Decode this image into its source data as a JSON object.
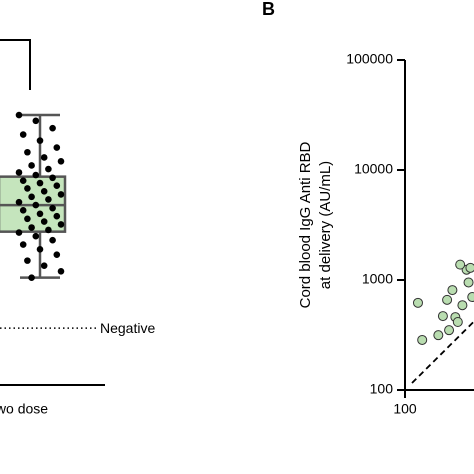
{
  "chart_data": [
    {
      "type": "box",
      "categories": [
        "wo dose"
      ],
      "ylim": [
        100,
        100000
      ],
      "log_y": true,
      "box": {
        "whisker_low": 1050,
        "q1": 2750,
        "median": 4800,
        "q3": 8700,
        "whisker_high": 31600
      },
      "points": [
        31600,
        28000,
        24000,
        21000,
        18500,
        16000,
        14500,
        13000,
        12000,
        11000,
        10200,
        9500,
        9000,
        8500,
        8000,
        7600,
        7200,
        6800,
        6400,
        6000,
        5700,
        5400,
        5100,
        4800,
        4500,
        4300,
        4000,
        3800,
        3600,
        3400,
        3200,
        3000,
        2850,
        2700,
        2500,
        2300,
        2100,
        1900,
        1700,
        1500,
        1350,
        1200,
        1050
      ],
      "box_color": "#c5e5bd",
      "point_color": "#000000",
      "annotation": {
        "text": "Negative",
        "value": 365
      }
    },
    {
      "type": "scatter",
      "title": "B",
      "ylabel": [
        "Cord blood IgG Anti RBD",
        "at delivery (AU/mL)"
      ],
      "xlim": [
        100,
        420
      ],
      "ylim": [
        100,
        100000
      ],
      "log_x": true,
      "log_y": true,
      "xticks": [
        100
      ],
      "yticks": [
        100,
        1000,
        10000,
        100000
      ],
      "color": "#b9ddb0",
      "x": [
        131,
        143,
        200,
        220,
        240,
        268,
        285,
        300,
        330,
        360,
        390,
        405,
        375,
        315,
        250
      ],
      "values": [
        620,
        285,
        315,
        470,
        660,
        810,
        460,
        415,
        590,
        1240,
        1290,
        700,
        950,
        1380,
        350
      ]
    }
  ]
}
